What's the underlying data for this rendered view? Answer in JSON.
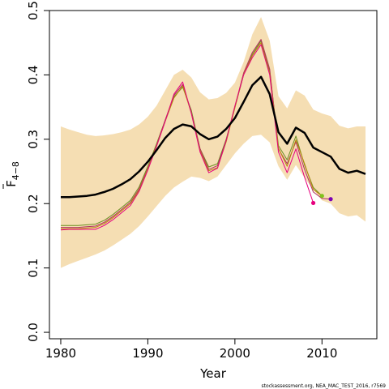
{
  "chart_data": {
    "type": "line",
    "xlabel": "Year",
    "ylabel": {
      "main": "F",
      "subscript": "4−8"
    },
    "xlim": [
      1978.7,
      2016.3
    ],
    "ylim": [
      -0.01,
      0.5
    ],
    "xticks": [
      "1980",
      "1990",
      "2000",
      "2010"
    ],
    "yticks": [
      "0.0",
      "0.1",
      "0.2",
      "0.3",
      "0.4",
      "0.5"
    ],
    "footer": "stockassessment.org, NEA_MAC_TEST_2016, r7569",
    "confidence_band": {
      "color": "#f5deb3",
      "x": [
        1980,
        1981,
        1982,
        1983,
        1984,
        1985,
        1986,
        1987,
        1988,
        1989,
        1990,
        1991,
        1992,
        1993,
        1994,
        1995,
        1996,
        1997,
        1998,
        1999,
        2000,
        2001,
        2002,
        2003,
        2004,
        2005,
        2006,
        2007,
        2008,
        2009,
        2010,
        2011,
        2012,
        2013,
        2014,
        2015
      ],
      "lower": [
        0.1,
        0.106,
        0.111,
        0.116,
        0.121,
        0.127,
        0.135,
        0.144,
        0.153,
        0.165,
        0.18,
        0.196,
        0.212,
        0.225,
        0.234,
        0.242,
        0.24,
        0.235,
        0.242,
        0.26,
        0.278,
        0.293,
        0.305,
        0.307,
        0.295,
        0.258,
        0.237,
        0.26,
        0.24,
        0.222,
        0.205,
        0.2,
        0.185,
        0.18,
        0.182,
        0.172
      ],
      "upper": [
        0.32,
        0.315,
        0.311,
        0.307,
        0.305,
        0.306,
        0.308,
        0.311,
        0.315,
        0.323,
        0.335,
        0.352,
        0.376,
        0.4,
        0.408,
        0.396,
        0.373,
        0.362,
        0.364,
        0.372,
        0.388,
        0.42,
        0.463,
        0.49,
        0.453,
        0.367,
        0.348,
        0.376,
        0.368,
        0.346,
        0.34,
        0.336,
        0.321,
        0.317,
        0.32,
        0.32
      ]
    },
    "series": [
      {
        "color": "#000000",
        "x": [
          1980,
          1981,
          1982,
          1983,
          1984,
          1985,
          1986,
          1987,
          1988,
          1989,
          1990,
          1991,
          1992,
          1993,
          1994,
          1995,
          1996,
          1997,
          1998,
          1999,
          2000,
          2001,
          2002,
          2003,
          2004,
          2005,
          2006,
          2007,
          2008,
          2009,
          2010,
          2011,
          2012,
          2013,
          2014,
          2015
        ],
        "values": [
          0.21,
          0.21,
          0.211,
          0.212,
          0.214,
          0.218,
          0.223,
          0.23,
          0.238,
          0.25,
          0.265,
          0.283,
          0.302,
          0.316,
          0.323,
          0.32,
          0.308,
          0.3,
          0.304,
          0.316,
          0.333,
          0.358,
          0.384,
          0.397,
          0.37,
          0.311,
          0.293,
          0.318,
          0.31,
          0.287,
          0.28,
          0.273,
          0.254,
          0.248,
          0.251,
          0.246
        ]
      },
      {
        "color": "#6b8e23",
        "x": [
          1980,
          1981,
          1982,
          1983,
          1984,
          1985,
          1986,
          1987,
          1988,
          1989,
          1990,
          1991,
          1992,
          1993,
          1994,
          1995,
          1996,
          1997,
          1998,
          1999,
          2000,
          2001,
          2002,
          2003,
          2004,
          2005,
          2006,
          2007,
          2008,
          2009,
          2010
        ],
        "values": [
          0.166,
          0.166,
          0.166,
          0.167,
          0.168,
          0.174,
          0.183,
          0.194,
          0.205,
          0.226,
          0.258,
          0.293,
          0.33,
          0.366,
          0.381,
          0.345,
          0.285,
          0.257,
          0.262,
          0.3,
          0.35,
          0.4,
          0.432,
          0.453,
          0.406,
          0.29,
          0.268,
          0.305,
          0.26,
          0.225,
          0.212
        ]
      },
      {
        "color": "#b03060",
        "x": [
          1980,
          1981,
          1982,
          1983,
          1984,
          1985,
          1986,
          1987,
          1988,
          1989,
          1990,
          1991,
          1992,
          1993,
          1994,
          1995,
          1996,
          1997,
          1998,
          1999,
          2000,
          2001,
          2002,
          2003,
          2004,
          2005,
          2006,
          2007,
          2008,
          2009,
          2010,
          2011
        ],
        "values": [
          0.163,
          0.163,
          0.163,
          0.164,
          0.165,
          0.171,
          0.18,
          0.191,
          0.202,
          0.223,
          0.255,
          0.291,
          0.33,
          0.368,
          0.385,
          0.342,
          0.285,
          0.253,
          0.259,
          0.298,
          0.351,
          0.403,
          0.435,
          0.455,
          0.409,
          0.285,
          0.262,
          0.296,
          0.253,
          0.218,
          0.208,
          0.207
        ]
      },
      {
        "color": "#b8860b",
        "x": [
          1980,
          1981,
          1982,
          1983,
          1984,
          1985,
          1986,
          1987,
          1988,
          1989,
          1990,
          1991,
          1992,
          1993,
          1994,
          1995,
          1996,
          1997,
          1998,
          1999,
          2000,
          2001,
          2002,
          2003,
          2004,
          2005,
          2006,
          2007,
          2008,
          2009,
          2010
        ],
        "values": [
          0.161,
          0.161,
          0.161,
          0.162,
          0.163,
          0.169,
          0.178,
          0.189,
          0.2,
          0.221,
          0.254,
          0.29,
          0.328,
          0.364,
          0.383,
          0.341,
          0.282,
          0.251,
          0.256,
          0.296,
          0.349,
          0.401,
          0.43,
          0.45,
          0.403,
          0.286,
          0.258,
          0.299,
          0.262,
          0.222,
          0.212
        ]
      },
      {
        "color": "#e6007e",
        "x": [
          1980,
          1981,
          1982,
          1983,
          1984,
          1985,
          1986,
          1987,
          1988,
          1989,
          1990,
          1991,
          1992,
          1993,
          1994,
          1995,
          1996,
          1997,
          1998,
          1999,
          2000,
          2001,
          2002,
          2003,
          2004,
          2005,
          2006,
          2007,
          2008,
          2009
        ],
        "values": [
          0.159,
          0.16,
          0.16,
          0.16,
          0.16,
          0.166,
          0.175,
          0.186,
          0.197,
          0.219,
          0.252,
          0.289,
          0.328,
          0.37,
          0.389,
          0.34,
          0.28,
          0.248,
          0.255,
          0.298,
          0.352,
          0.4,
          0.427,
          0.447,
          0.4,
          0.28,
          0.248,
          0.285,
          0.241,
          0.201
        ]
      }
    ],
    "endpoints": [
      {
        "x": 2009,
        "y": 0.201,
        "color": "#e6007e"
      },
      {
        "x": 2010,
        "y": 0.212,
        "color": "#7fc31c"
      },
      {
        "x": 2011,
        "y": 0.207,
        "color": "#7b00b4"
      }
    ]
  }
}
